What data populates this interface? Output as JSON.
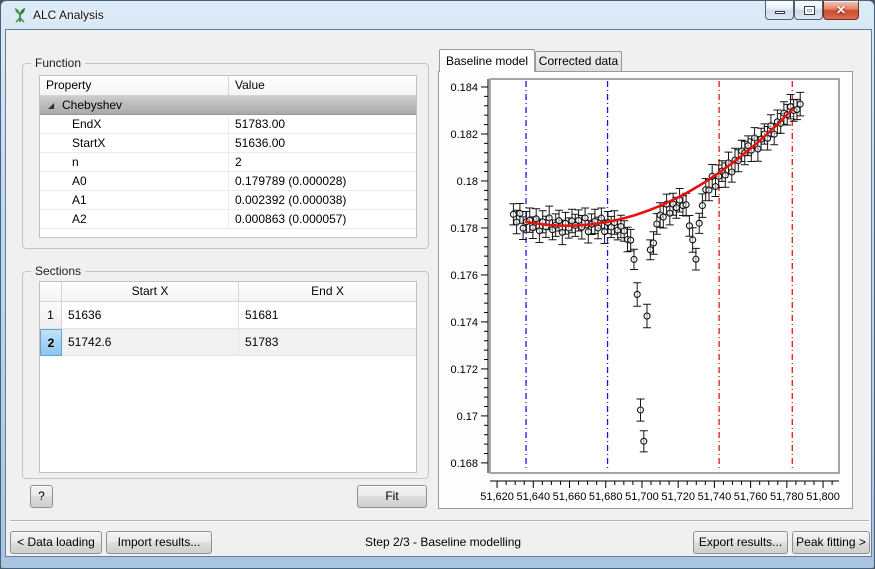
{
  "window": {
    "title": "ALC Analysis",
    "close_glyph": "✕"
  },
  "function_panel": {
    "title": "Function",
    "columns": {
      "property": "Property",
      "value": "Value"
    },
    "group_label": "Chebyshev",
    "rows": [
      {
        "property": "EndX",
        "value": "51783.00"
      },
      {
        "property": "StartX",
        "value": "51636.00"
      },
      {
        "property": "n",
        "value": "2"
      },
      {
        "property": "A0",
        "value": "0.179789 (0.000028)"
      },
      {
        "property": "A1",
        "value": "0.002392 (0.000038)"
      },
      {
        "property": "A2",
        "value": "0.000863 (0.000057)"
      }
    ]
  },
  "sections_panel": {
    "title": "Sections",
    "columns": {
      "start": "Start X",
      "end": "End X"
    },
    "rows": [
      {
        "num": "1",
        "start": "51636",
        "end": "51681"
      },
      {
        "num": "2",
        "start": "51742.6",
        "end": "51783"
      }
    ]
  },
  "actions": {
    "help": "?",
    "fit": "Fit"
  },
  "tabs": {
    "baseline": "Baseline model",
    "corrected": "Corrected data"
  },
  "footer": {
    "back": "< Data loading",
    "import": "Import results...",
    "status": "Step 2/3 - Baseline modelling",
    "export": "Export results...",
    "next": "Peak fitting >"
  },
  "chart_data": {
    "type": "scatter",
    "title": "",
    "xlabel": "",
    "ylabel": "",
    "grid": false,
    "xlim": [
      51616.1,
      51808.8
    ],
    "ylim": [
      0.16757,
      0.18434
    ],
    "x_ticks": {
      "major_start": 51620,
      "major_step": 20,
      "major_end": 51800,
      "minor_step": 5,
      "labels": [
        "51,620",
        "51,640",
        "51,660",
        "51,680",
        "51,700",
        "51,720",
        "51,740",
        "51,760",
        "51,780",
        "51,800"
      ]
    },
    "y_ticks": {
      "major_start": 0.168,
      "major_step": 0.002,
      "major_end": 0.184,
      "minor_step": 0.0004,
      "labels": [
        "0.168",
        "0.17",
        "0.172",
        "0.174",
        "0.176",
        "0.178",
        "0.18",
        "0.182",
        "0.184"
      ]
    },
    "colors": {
      "curve": "#e8120c",
      "points": "#141414",
      "blue_line": "#1414e6",
      "red_line": "#e61414",
      "frame": "#a6a6a6",
      "canvas": "#ffffff"
    },
    "section_lines": [
      {
        "x": 51636,
        "color": "#1414e6"
      },
      {
        "x": 51681,
        "color": "#1414e6"
      },
      {
        "x": 51742.6,
        "color": "#e61414"
      },
      {
        "x": 51783,
        "color": "#e61414"
      }
    ],
    "fit": {
      "type": "Chebyshev",
      "startX": 51636,
      "endX": 51783,
      "n": 2,
      "A0": 0.179789,
      "A1": 0.002392,
      "A2": 0.000863
    },
    "error_cycle": [
      0.00045,
      0.0005,
      0.00042,
      0.00048,
      0.00044,
      0.00052,
      0.00046,
      0.00043,
      0.0005,
      0.00047
    ],
    "points": [
      [
        51629.0,
        0.17858
      ],
      [
        51630.8,
        0.17825
      ],
      [
        51632.6,
        0.17862
      ],
      [
        51634.4,
        0.17799
      ],
      [
        51636.2,
        0.17826
      ],
      [
        51638.0,
        0.17833
      ],
      [
        51639.8,
        0.17801
      ],
      [
        51641.6,
        0.17839
      ],
      [
        51643.4,
        0.17788
      ],
      [
        51645.2,
        0.17826
      ],
      [
        51647.0,
        0.17805
      ],
      [
        51648.8,
        0.17843
      ],
      [
        51650.6,
        0.17792
      ],
      [
        51652.4,
        0.17812
      ],
      [
        51654.2,
        0.17831
      ],
      [
        51656.0,
        0.17781
      ],
      [
        51657.8,
        0.1782
      ],
      [
        51659.6,
        0.178
      ],
      [
        51661.4,
        0.1783
      ],
      [
        51663.2,
        0.17811
      ],
      [
        51665.0,
        0.17832
      ],
      [
        51666.8,
        0.17803
      ],
      [
        51668.6,
        0.17843
      ],
      [
        51670.4,
        0.17784
      ],
      [
        51672.2,
        0.17816
      ],
      [
        51674.0,
        0.17828
      ],
      [
        51675.8,
        0.178
      ],
      [
        51677.6,
        0.17842
      ],
      [
        51679.4,
        0.17784
      ],
      [
        51681.2,
        0.17823
      ],
      [
        51683.0,
        0.17804
      ],
      [
        51684.8,
        0.17823
      ],
      [
        51686.6,
        0.17791
      ],
      [
        51688.4,
        0.17806
      ],
      [
        51690.2,
        0.17787
      ],
      [
        51692.0,
        0.17751
      ],
      [
        51693.8,
        0.17748
      ],
      [
        51695.6,
        0.17666
      ],
      [
        51697.4,
        0.17517
      ],
      [
        51699.2,
        0.17025
      ],
      [
        51701.0,
        0.16892
      ],
      [
        51702.8,
        0.17425
      ],
      [
        51704.6,
        0.17707
      ],
      [
        51706.4,
        0.17736
      ],
      [
        51708.2,
        0.17817
      ],
      [
        51710.0,
        0.17855
      ],
      [
        51711.8,
        0.17846
      ],
      [
        51713.6,
        0.17901
      ],
      [
        51715.4,
        0.17863
      ],
      [
        51717.2,
        0.17901
      ],
      [
        51719.0,
        0.17886
      ],
      [
        51720.8,
        0.17918
      ],
      [
        51722.6,
        0.17895
      ],
      [
        51724.4,
        0.17899
      ],
      [
        51726.2,
        0.17809
      ],
      [
        51728.0,
        0.17749
      ],
      [
        51729.8,
        0.17667
      ],
      [
        51731.6,
        0.1782
      ],
      [
        51733.4,
        0.17895
      ],
      [
        51735.2,
        0.17963
      ],
      [
        51737.0,
        0.17961
      ],
      [
        51738.8,
        0.1802
      ],
      [
        51740.6,
        0.17976
      ],
      [
        51742.4,
        0.1802
      ],
      [
        51744.2,
        0.18042
      ],
      [
        51746.0,
        0.18025
      ],
      [
        51747.8,
        0.18077
      ],
      [
        51749.6,
        0.18038
      ],
      [
        51751.4,
        0.18089
      ],
      [
        51753.2,
        0.18086
      ],
      [
        51755.0,
        0.18128
      ],
      [
        51756.8,
        0.18119
      ],
      [
        51758.6,
        0.1815
      ],
      [
        51760.4,
        0.18131
      ],
      [
        51762.2,
        0.18183
      ],
      [
        51764.0,
        0.18136
      ],
      [
        51765.8,
        0.18178
      ],
      [
        51767.6,
        0.182
      ],
      [
        51769.4,
        0.18182
      ],
      [
        51771.2,
        0.18235
      ],
      [
        51773.0,
        0.18199
      ],
      [
        51774.8,
        0.18252
      ],
      [
        51776.6,
        0.18245
      ],
      [
        51778.4,
        0.18289
      ],
      [
        51780.2,
        0.18282
      ],
      [
        51782.0,
        0.18316
      ],
      [
        51783.8,
        0.183
      ],
      [
        51785.6,
        0.18304
      ],
      [
        51787.4,
        0.18327
      ]
    ]
  }
}
